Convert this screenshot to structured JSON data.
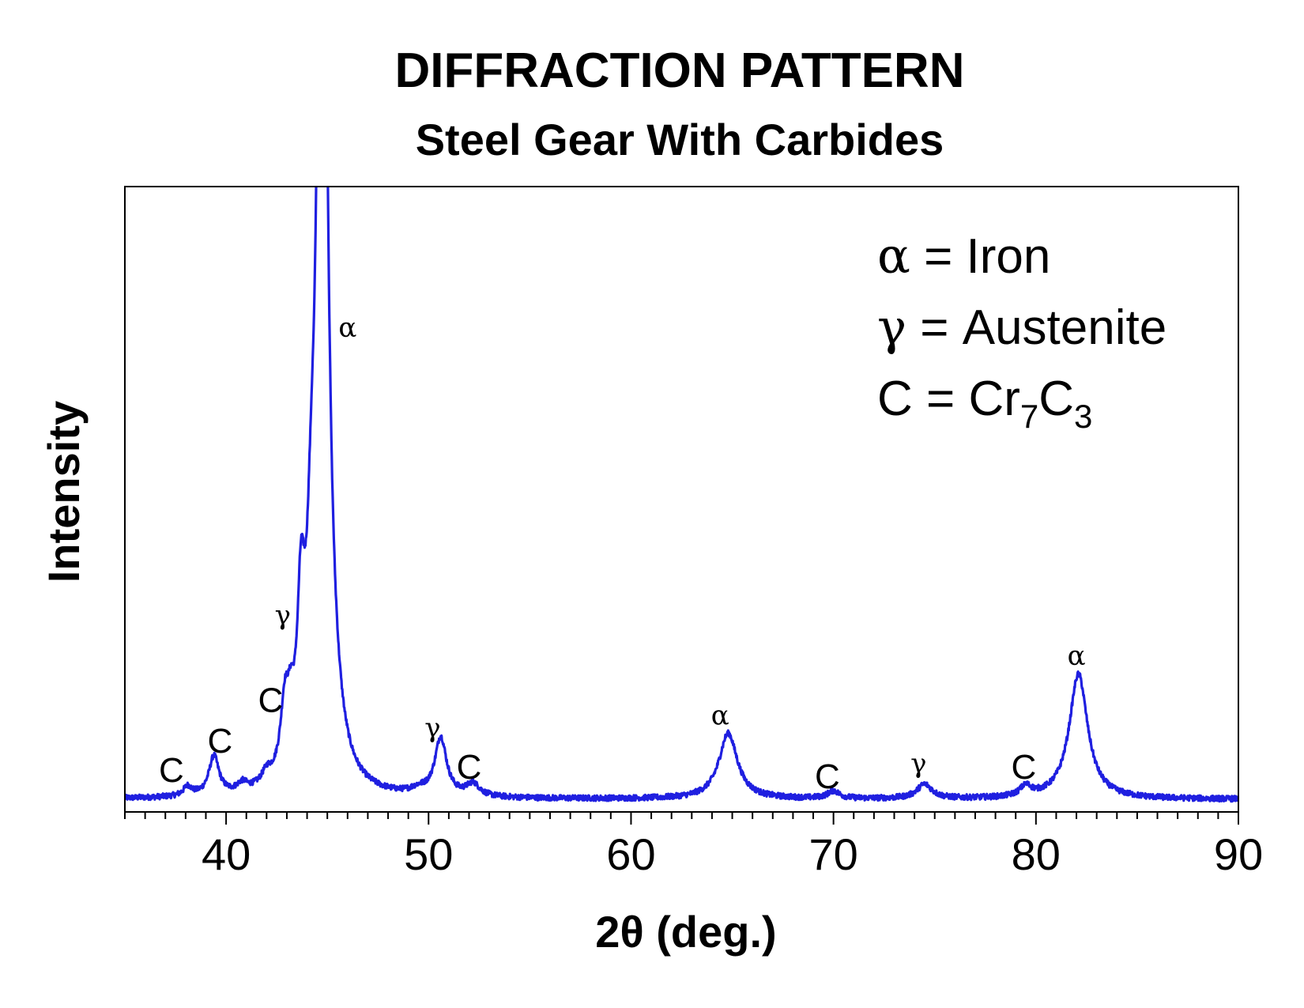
{
  "chart_data": {
    "type": "line",
    "title": "DIFFRACTION PATTERN",
    "subtitle": "Steel Gear With Carbides",
    "xlabel": "2θ (deg.)",
    "ylabel": "Intensity",
    "xlim": [
      35,
      90
    ],
    "ylim": [
      0,
      100
    ],
    "x_major_ticks": [
      40,
      50,
      60,
      70,
      80,
      90
    ],
    "x_tick_labels": [
      "40",
      "50",
      "60",
      "70",
      "80",
      "90"
    ],
    "x_minor_tick_step": 1,
    "y_tick_labels": false,
    "grid": false,
    "line_color": "#1f1fe0",
    "baseline": 2,
    "peaks": [
      {
        "x": 38.1,
        "height": 1.5,
        "width": 0.25
      },
      {
        "x": 39.4,
        "height": 6.2,
        "width": 0.3
      },
      {
        "x": 40.8,
        "height": 1.3,
        "width": 0.3
      },
      {
        "x": 42.0,
        "height": 1.8,
        "width": 0.3
      },
      {
        "x": 42.9,
        "height": 10.5,
        "width": 0.25
      },
      {
        "x": 43.2,
        "height": 6.0,
        "width": 0.2
      },
      {
        "x": 43.7,
        "height": 23.0,
        "width": 0.22
      },
      {
        "x": 44.2,
        "height": 20.0,
        "width": 0.25
      },
      {
        "x": 44.75,
        "height": 180.0,
        "width": 0.28
      },
      {
        "x": 45.2,
        "height": 5.5,
        "width": 0.6
      },
      {
        "x": 49.5,
        "height": 0.8,
        "width": 0.5
      },
      {
        "x": 50.6,
        "height": 9.3,
        "width": 0.35
      },
      {
        "x": 52.2,
        "height": 2.0,
        "width": 0.4
      },
      {
        "x": 64.8,
        "height": 10.5,
        "width": 0.55
      },
      {
        "x": 70.0,
        "height": 1.2,
        "width": 0.35
      },
      {
        "x": 74.5,
        "height": 2.3,
        "width": 0.45
      },
      {
        "x": 79.5,
        "height": 1.6,
        "width": 0.35
      },
      {
        "x": 82.1,
        "height": 20.0,
        "width": 0.55
      }
    ],
    "annotations": [
      {
        "text": "α",
        "x": 46.0,
        "y": 76,
        "kind": "greek"
      },
      {
        "text": "γ",
        "x": 42.8,
        "y": 30,
        "kind": "greek"
      },
      {
        "text": "C",
        "x": 42.2,
        "y": 16,
        "kind": "carbide"
      },
      {
        "text": "C",
        "x": 39.7,
        "y": 9.5,
        "kind": "carbide"
      },
      {
        "text": "C",
        "x": 37.3,
        "y": 4.8,
        "kind": "carbide"
      },
      {
        "text": "γ",
        "x": 50.2,
        "y": 12,
        "kind": "greek"
      },
      {
        "text": "C",
        "x": 52.0,
        "y": 5.3,
        "kind": "carbide"
      },
      {
        "text": "α",
        "x": 64.4,
        "y": 14,
        "kind": "greek"
      },
      {
        "text": "C",
        "x": 69.7,
        "y": 3.8,
        "kind": "carbide"
      },
      {
        "text": "γ",
        "x": 74.2,
        "y": 6.3,
        "kind": "greek"
      },
      {
        "text": "C",
        "x": 79.4,
        "y": 5.3,
        "kind": "carbide"
      },
      {
        "text": "α",
        "x": 82.0,
        "y": 23.5,
        "kind": "greek"
      }
    ],
    "legend": {
      "placement": "top-right",
      "entries": [
        {
          "symbol": "α",
          "text": " = Iron"
        },
        {
          "symbol": "γ",
          "text": " = Austenite"
        },
        {
          "symbol": "C",
          "text": " = Cr",
          "sub1": "7",
          "mid": "C",
          "sub2": "3"
        }
      ]
    }
  }
}
